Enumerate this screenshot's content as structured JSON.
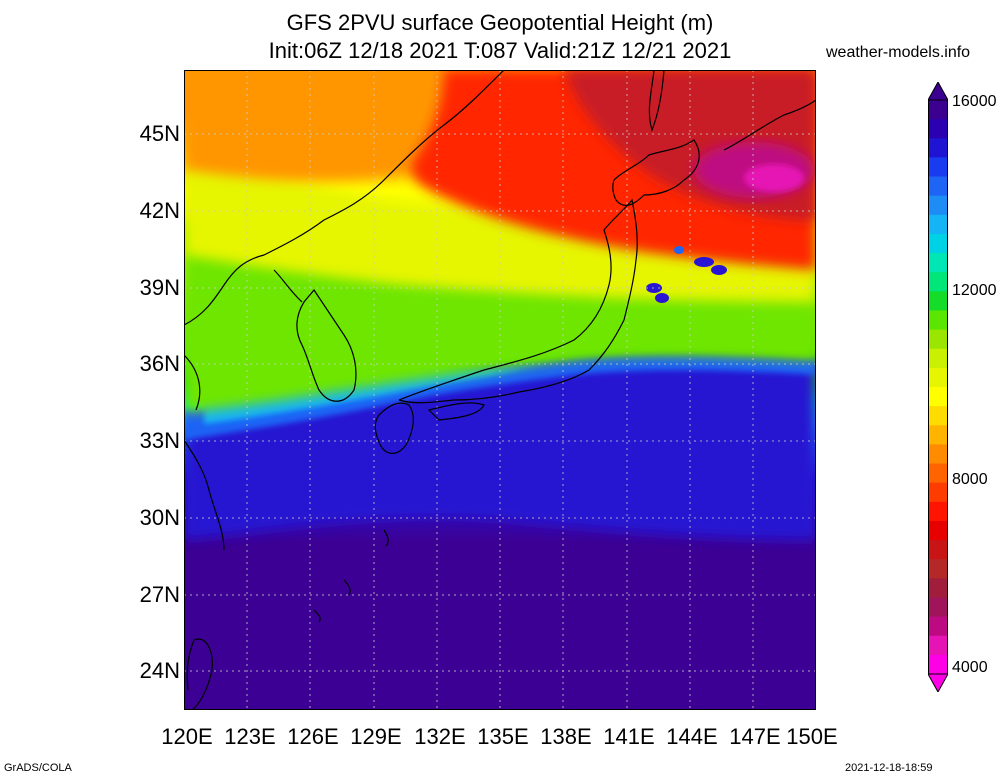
{
  "title": {
    "line1": "GFS 2PVU surface Geopotential Height (m)",
    "line2": "Init:06Z 12/18 2021 T:087 Valid:21Z 12/21 2021"
  },
  "site": "weather-models.info",
  "lat_labels": [
    "45N",
    "42N",
    "39N",
    "36N",
    "33N",
    "30N",
    "27N",
    "24N"
  ],
  "lon_labels": [
    "120E",
    "123E",
    "126E",
    "129E",
    "132E",
    "135E",
    "138E",
    "141E",
    "144E",
    "147E",
    "150E"
  ],
  "colorbar": {
    "labels": [
      "16000",
      "12000",
      "8000",
      "4000"
    ],
    "colors": [
      "#3b0090",
      "#2a00b0",
      "#1e14d2",
      "#1a3cf0",
      "#1e64f5",
      "#1e8cf5",
      "#14b4f5",
      "#00d2e6",
      "#00e6b4",
      "#00e678",
      "#14dc28",
      "#5ae600",
      "#9ae600",
      "#c8f000",
      "#e6f500",
      "#ffff00",
      "#ffdc00",
      "#ffb400",
      "#ff8c00",
      "#ff6400",
      "#ff3c00",
      "#ff1400",
      "#e60000",
      "#c81414",
      "#b42828",
      "#a01e3c",
      "#a0145a",
      "#be0a82",
      "#e614b4",
      "#ff00e6"
    ]
  },
  "map": {
    "lon_range": [
      120,
      150
    ],
    "lat_range": [
      22.5,
      47.5
    ],
    "colors": {
      "deep": "#3c0094",
      "blue": "#2814d2",
      "cyan": "#14b4f5",
      "green": "#6ee600",
      "yellow": "#ffff00",
      "orange": "#ffa000",
      "red": "#ff2800",
      "darkred": "#c81e28",
      "magenta": "#e614b4"
    }
  },
  "footer": {
    "left": "GrADS/COLA",
    "right": "2021-12-18-18:59"
  }
}
